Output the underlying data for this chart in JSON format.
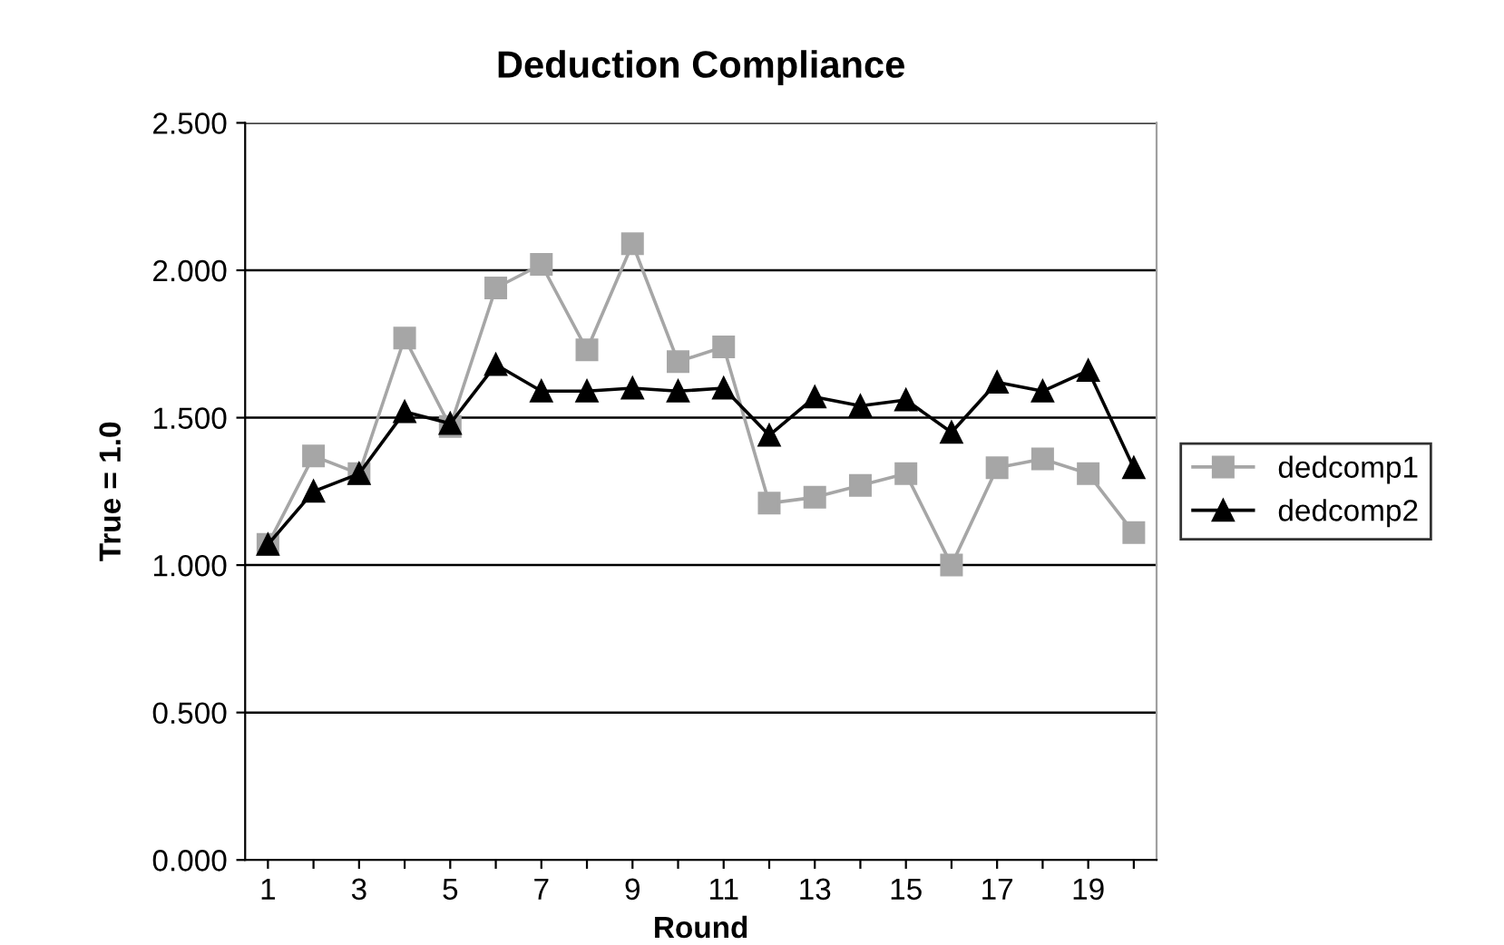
{
  "chart_data": {
    "type": "line",
    "title": "Deduction Compliance",
    "xlabel": "Round",
    "ylabel": "True = 1.0",
    "categories": [
      "1",
      null,
      "3",
      null,
      "5",
      null,
      "7",
      null,
      "9",
      null,
      "11",
      null,
      "13",
      null,
      "15",
      null,
      "17",
      null,
      "19",
      null
    ],
    "series": [
      {
        "name": "dedcomp1",
        "color": "#a6a6a6",
        "marker": "square",
        "values": [
          1.07,
          1.37,
          1.31,
          1.77,
          1.47,
          1.94,
          2.02,
          1.73,
          2.09,
          1.69,
          1.74,
          1.21,
          1.23,
          1.27,
          1.31,
          1.0,
          1.33,
          1.36,
          1.31,
          1.11
        ]
      },
      {
        "name": "dedcomp2",
        "color": "#000000",
        "marker": "triangle",
        "values": [
          1.07,
          1.25,
          1.31,
          1.52,
          1.48,
          1.68,
          1.59,
          1.59,
          1.6,
          1.59,
          1.6,
          1.44,
          1.57,
          1.54,
          1.56,
          1.45,
          1.62,
          1.59,
          1.66,
          1.33
        ]
      }
    ],
    "ylim": [
      0,
      2.5
    ],
    "yticks": [
      {
        "value": 0,
        "label": "0.000"
      },
      {
        "value": 0.5,
        "label": "0.500"
      },
      {
        "value": 1,
        "label": "1.000"
      },
      {
        "value": 1.5,
        "label": "1.500"
      },
      {
        "value": 2,
        "label": "2.000"
      },
      {
        "value": 2.5,
        "label": "2.500"
      }
    ],
    "grid": "y",
    "legend": "right",
    "line_style": "solid"
  }
}
